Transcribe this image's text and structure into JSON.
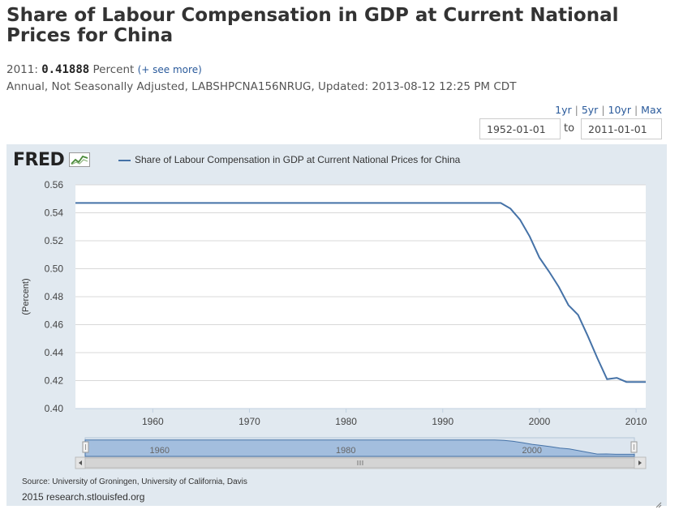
{
  "header": {
    "title": "Share of Labour Compensation in GDP at Current National Prices for China",
    "latest_year": "2011:",
    "latest_value": "0.41888",
    "latest_unit": "Percent",
    "see_more": "(+ see more)",
    "meta": "Annual, Not Seasonally Adjusted, LABSHPCNA156NRUG, Updated: 2013-08-12 12:25 PM CDT"
  },
  "ranges": {
    "r1": "1yr",
    "r5": "5yr",
    "r10": "10yr",
    "max": "Max",
    "sep": "|"
  },
  "dates": {
    "start": "1952-01-01",
    "to": "to",
    "end": "2011-01-01"
  },
  "logo": "FRED",
  "footer": {
    "source": "Source: University of Groningen, University of California, Davis",
    "copyright": "2015 research.stlouisfed.org"
  },
  "colors": {
    "series": "#4572a7",
    "panel": "#e1e9f0",
    "navigator": "#8fb0d8"
  },
  "chart_data": {
    "type": "line",
    "title": "",
    "xlabel": "",
    "ylabel": "(Percent)",
    "xlim": [
      1952,
      2011
    ],
    "ylim": [
      0.4,
      0.56
    ],
    "yticks": [
      "0.40",
      "0.42",
      "0.44",
      "0.46",
      "0.48",
      "0.50",
      "0.52",
      "0.54",
      "0.56"
    ],
    "xticks": [
      "1960",
      "1970",
      "1980",
      "1990",
      "2000",
      "2010"
    ],
    "navigator_labels": [
      "1960",
      "1980",
      "2000"
    ],
    "series": [
      {
        "name": "Share of Labour Compensation in GDP at Current National Prices for China",
        "x": [
          1952,
          1955,
          1960,
          1965,
          1970,
          1975,
          1980,
          1985,
          1990,
          1995,
          1996,
          1997,
          1998,
          1999,
          2000,
          2001,
          2002,
          2003,
          2004,
          2005,
          2006,
          2007,
          2008,
          2009,
          2010,
          2011
        ],
        "values": [
          0.547,
          0.547,
          0.547,
          0.547,
          0.547,
          0.547,
          0.547,
          0.547,
          0.547,
          0.547,
          0.547,
          0.543,
          0.535,
          0.523,
          0.508,
          0.498,
          0.487,
          0.474,
          0.467,
          0.452,
          0.436,
          0.421,
          0.422,
          0.419,
          0.419,
          0.419
        ]
      }
    ]
  }
}
